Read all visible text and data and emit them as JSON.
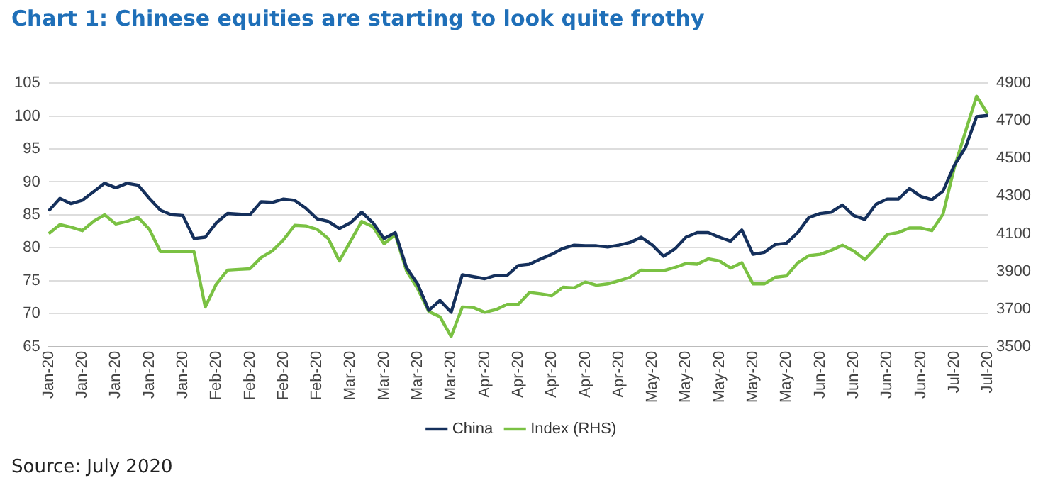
{
  "chart_data": {
    "type": "line",
    "title": "Chart 1:  Chinese equities are starting to look quite frothy",
    "categories": [
      "Jan-20",
      null,
      null,
      "Jan-20",
      null,
      null,
      "Jan-20",
      null,
      null,
      "Jan-20",
      null,
      null,
      "Jan-20",
      null,
      null,
      "Feb-20",
      null,
      null,
      "Feb-20",
      null,
      null,
      "Feb-20",
      null,
      null,
      "Feb-20",
      null,
      null,
      "Mar-20",
      null,
      null,
      "Mar-20",
      null,
      null,
      "Mar-20",
      null,
      null,
      "Mar-20",
      null,
      null,
      "Apr-20",
      null,
      null,
      "Apr-20",
      null,
      null,
      "Apr-20",
      null,
      null,
      "Apr-20",
      null,
      null,
      "Apr-20",
      null,
      null,
      "May-20",
      null,
      null,
      "May-20",
      null,
      null,
      "May-20",
      null,
      null,
      "May-20",
      null,
      null,
      "May-20",
      null,
      null,
      "Jun-20",
      null,
      null,
      "Jun-20",
      null,
      null,
      "Jun-20",
      null,
      null,
      "Jun-20",
      null,
      null,
      "Jul-20",
      null,
      null,
      "Jul-20"
    ],
    "series": [
      {
        "name": "China",
        "color": "#15305c",
        "values": [
          85.6,
          87.5,
          86.7,
          87.2,
          88.5,
          89.8,
          89.1,
          89.8,
          89.5,
          87.5,
          85.7,
          85.0,
          84.9,
          81.4,
          81.6,
          83.8,
          85.2,
          85.1,
          85.0,
          87.0,
          86.9,
          87.4,
          87.2,
          86.0,
          84.4,
          84.0,
          82.9,
          83.8,
          85.4,
          83.8,
          81.4,
          82.3,
          77.0,
          74.5,
          70.5,
          72.0,
          70.2,
          75.9,
          75.6,
          75.3,
          75.8,
          75.8,
          77.3,
          77.5,
          78.3,
          79.0,
          79.9,
          80.4,
          80.3,
          80.3,
          80.1,
          80.4,
          80.8,
          81.6,
          80.4,
          78.7,
          79.8,
          81.6,
          82.3,
          82.3,
          81.6,
          81.0,
          82.7,
          79.0,
          79.3,
          80.5,
          80.7,
          82.3,
          84.6,
          85.2,
          85.4,
          86.5,
          84.9,
          84.3,
          86.6,
          87.4,
          87.4,
          89.0,
          87.8,
          87.3,
          88.6,
          92.5,
          95.2,
          99.9,
          100.1
        ]
      },
      {
        "name": "Index (RHS)",
        "color": "#7ac143",
        "axis": "y2",
        "values": [
          4100,
          4148,
          4134,
          4116,
          4165,
          4200,
          4151,
          4165,
          4186,
          4123,
          4004,
          4004,
          4004,
          4004,
          3710,
          3833,
          3906,
          3910,
          3913,
          3973,
          4008,
          4067,
          4144,
          4141,
          4123,
          4074,
          3955,
          4060,
          4165,
          4137,
          4046,
          4095,
          3903,
          3808,
          3686,
          3658,
          3553,
          3710,
          3707,
          3682,
          3696,
          3724,
          3724,
          3787,
          3780,
          3770,
          3815,
          3812,
          3843,
          3826,
          3833,
          3850,
          3868,
          3906,
          3903,
          3903,
          3920,
          3941,
          3938,
          3966,
          3955,
          3917,
          3945,
          3833,
          3833,
          3868,
          3875,
          3945,
          3983,
          3990,
          4011,
          4039,
          4008,
          3962,
          4025,
          4095,
          4106,
          4130,
          4130,
          4116,
          4204,
          4449,
          4641,
          4830,
          4736
        ]
      }
    ],
    "ylim": [
      65,
      105
    ],
    "yticks": [
      65,
      70,
      75,
      80,
      85,
      90,
      95,
      100,
      105
    ],
    "y2lim": [
      3500,
      4900
    ],
    "y2ticks": [
      3500,
      3700,
      3900,
      4100,
      4300,
      4500,
      4700,
      4900
    ],
    "grid": "y",
    "legend": "bottom",
    "marker": "none",
    "line_style": "solid",
    "annotations": [
      "Source: July 2020"
    ]
  }
}
